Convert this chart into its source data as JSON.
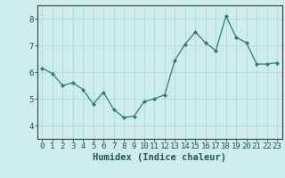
{
  "x": [
    0,
    1,
    2,
    3,
    4,
    5,
    6,
    7,
    8,
    9,
    10,
    11,
    12,
    13,
    14,
    15,
    16,
    17,
    18,
    19,
    20,
    21,
    22,
    23
  ],
  "y": [
    6.15,
    5.95,
    5.5,
    5.6,
    5.35,
    4.8,
    5.25,
    4.6,
    4.3,
    4.35,
    4.9,
    5.0,
    5.15,
    6.45,
    7.05,
    7.5,
    7.1,
    6.8,
    8.1,
    7.3,
    7.1,
    6.3,
    6.3,
    6.35
  ],
  "line_color": "#2d7d6e",
  "marker": "D",
  "marker_size": 2.0,
  "bg_color": "#ceecea",
  "grid_color": "#b0d8d4",
  "axis_color": "#3a3a3a",
  "text_color": "#1a5a50",
  "xlabel": "Humidex (Indice chaleur)",
  "xlim": [
    -0.5,
    23.5
  ],
  "ylim": [
    3.5,
    8.5
  ],
  "yticks": [
    4,
    5,
    6,
    7,
    8
  ],
  "xticks": [
    0,
    1,
    2,
    3,
    4,
    5,
    6,
    7,
    8,
    9,
    10,
    11,
    12,
    13,
    14,
    15,
    16,
    17,
    18,
    19,
    20,
    21,
    22,
    23
  ],
  "xlabel_fontsize": 7.5,
  "tick_fontsize": 6.5
}
